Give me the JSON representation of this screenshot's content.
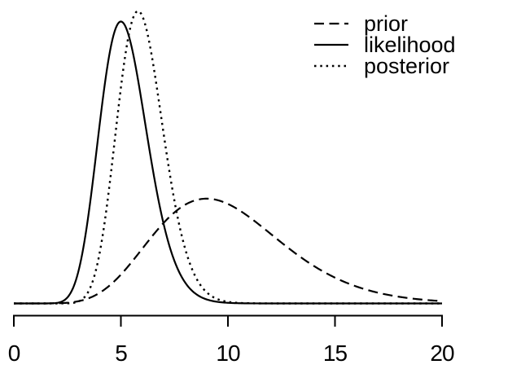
{
  "figure": {
    "background": "#ffffff",
    "line_color": "#000000"
  },
  "legend": {
    "position": "top-right",
    "entries": [
      {
        "label": "prior",
        "line_style": "dashed"
      },
      {
        "label": "likelihood",
        "line_style": "solid"
      },
      {
        "label": "posterior",
        "line_style": "dotted"
      }
    ]
  },
  "x_axis": {
    "range": [
      0,
      20
    ],
    "ticks": [
      0,
      5,
      10,
      15,
      20
    ],
    "tick_labels": [
      "0",
      "5",
      "10",
      "15",
      "20"
    ]
  },
  "chart_data": {
    "type": "line",
    "title": "",
    "xlabel": "",
    "ylabel": "",
    "x_range": [
      0,
      20
    ],
    "x_ticks": [
      0,
      5,
      10,
      15,
      20
    ],
    "y_density_range": [
      0,
      0.37
    ],
    "grid": false,
    "legend_position": "top-right",
    "series": [
      {
        "name": "prior",
        "style": "dashed",
        "color": "#000000",
        "distribution": "gamma",
        "shape": 10,
        "rate": 1,
        "mode": 9,
        "peak_density": 0.1326
      },
      {
        "name": "likelihood",
        "style": "solid",
        "color": "#000000",
        "distribution": "gamma",
        "shape": 21,
        "rate": 4,
        "mode": 5,
        "peak_density": 0.3568
      },
      {
        "name": "posterior",
        "style": "dotted",
        "color": "#000000",
        "distribution": "gamma",
        "shape": 30,
        "rate": 5,
        "mode": 5.8,
        "peak_density": 0.37
      }
    ],
    "samples": {
      "x": [
        0,
        1,
        2,
        3,
        4,
        5,
        6,
        7,
        8,
        9,
        10,
        11,
        12,
        13,
        14,
        15,
        16,
        17,
        18,
        19,
        20
      ],
      "prior": [
        0,
        1e-06,
        0.00019,
        0.0027,
        0.0132,
        0.0363,
        0.0688,
        0.1014,
        0.1241,
        0.1318,
        0.1251,
        0.1085,
        0.0874,
        0.0661,
        0.0476,
        0.0324,
        0.0213,
        0.0135,
        0.0083,
        0.005,
        0.0029
      ],
      "likelihood": [
        0,
        0,
        0.0006,
        0.0389,
        0.2247,
        0.3568,
        0.2505,
        0.1001,
        0.0265,
        0.0051,
        0.0008,
        0.0001,
        0,
        0,
        0,
        0,
        0,
        0,
        0,
        0,
        0
      ],
      "posterior": [
        0,
        0,
        0,
        0.0022,
        0.0625,
        0.2734,
        0.3637,
        0.2146,
        0.0694,
        0.0142,
        0.002,
        0.0002,
        0,
        0,
        0,
        0,
        0,
        0,
        0,
        0,
        0
      ]
    }
  }
}
